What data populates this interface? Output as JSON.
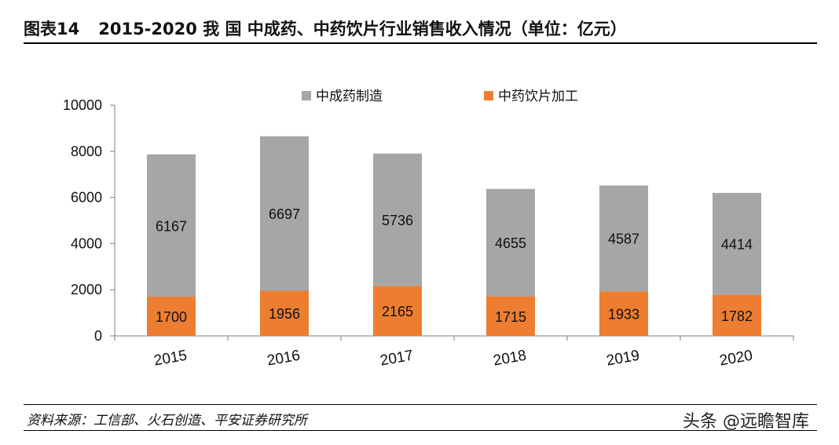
{
  "header": {
    "figure_label": "图表14",
    "title": "2015-2020 我 国 中成药、中药饮片行业销售收入情况（单位：亿元）"
  },
  "source": "资料来源：工信部、火石创造、平安证券研究所",
  "watermark": "头条 @远瞻智库",
  "colors": {
    "series_tcm_manufacturing": "#a6a6a6",
    "series_decoction_pieces": "#ed7d31",
    "axis": "#7f7f7f",
    "text": "#111111"
  },
  "chart_data": {
    "type": "bar",
    "stacked": true,
    "categories": [
      "2015",
      "2016",
      "2017",
      "2018",
      "2019",
      "2020"
    ],
    "series": [
      {
        "name": "中药饮片加工",
        "values": [
          1700,
          1956,
          2165,
          1715,
          1933,
          1782
        ]
      },
      {
        "name": "中成药制造",
        "values": [
          6167,
          6697,
          5736,
          4655,
          4587,
          4414
        ]
      }
    ],
    "yticks": [
      "0",
      "2000",
      "4000",
      "6000",
      "8000",
      "10000"
    ],
    "ylim": [
      0,
      10000
    ],
    "legend_order": [
      "中成药制造",
      "中药饮片加工"
    ],
    "legend_position": "top",
    "grid": false,
    "data_labels": true
  }
}
